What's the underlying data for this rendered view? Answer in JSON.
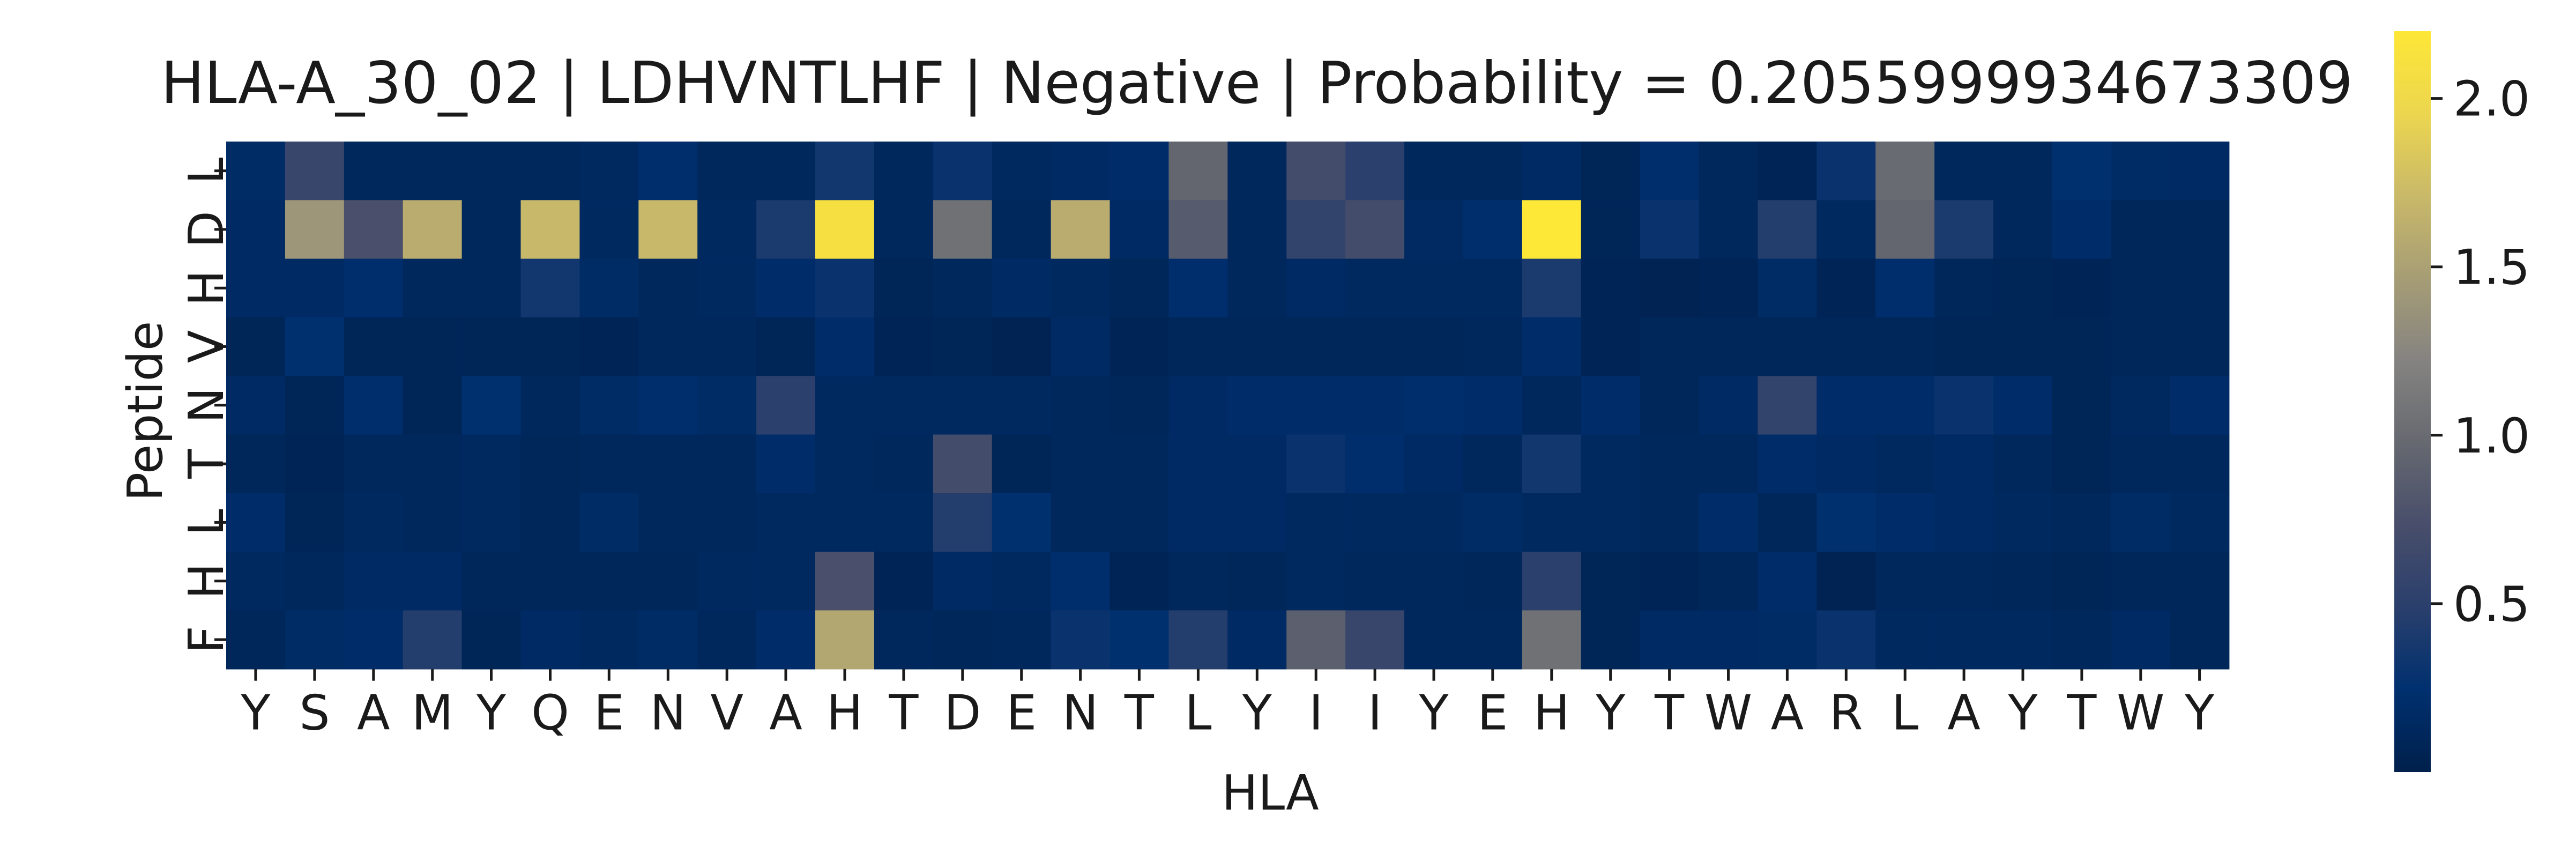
{
  "chart_data": {
    "type": "heatmap",
    "title": "HLA-A_30_02 | LDHVNTLHF | Negative | Probability = 0.2055999934673309",
    "xlabel": "HLA",
    "ylabel": "Peptide",
    "x_categories": [
      "Y",
      "S",
      "A",
      "M",
      "Y",
      "Q",
      "E",
      "N",
      "V",
      "A",
      "H",
      "T",
      "D",
      "E",
      "N",
      "T",
      "L",
      "Y",
      "I",
      "I",
      "Y",
      "E",
      "H",
      "Y",
      "T",
      "W",
      "A",
      "R",
      "L",
      "A",
      "Y",
      "T",
      "W",
      "Y"
    ],
    "y_categories": [
      "L",
      "D",
      "H",
      "V",
      "N",
      "T",
      "L",
      "H",
      "F"
    ],
    "colormap": "cividis",
    "colors": [
      "#00204c",
      "#00306f",
      "#2a3f6c",
      "#484e6b",
      "#666970",
      "#858381",
      "#a69d75",
      "#c9b969",
      "#ecd64f",
      "#fde737"
    ],
    "vmin": 0.0,
    "vmax": 2.2,
    "colorbar_ticks": [
      0.5,
      1.0,
      1.5,
      2.0
    ],
    "colorbar_tick_labels": [
      "0.5",
      "1.0",
      "1.5",
      "2.0"
    ],
    "values": [
      [
        0.18,
        0.6,
        0.12,
        0.12,
        0.12,
        0.12,
        0.14,
        0.22,
        0.12,
        0.12,
        0.35,
        0.12,
        0.3,
        0.14,
        0.16,
        0.2,
        0.95,
        0.12,
        0.7,
        0.5,
        0.12,
        0.12,
        0.16,
        0.08,
        0.22,
        0.12,
        0.06,
        0.3,
        1.0,
        0.12,
        0.12,
        0.25,
        0.18,
        0.16
      ],
      [
        0.16,
        1.4,
        0.75,
        1.6,
        0.12,
        1.7,
        0.14,
        1.7,
        0.14,
        0.4,
        2.1,
        0.12,
        1.05,
        0.12,
        1.6,
        0.16,
        0.85,
        0.12,
        0.55,
        0.7,
        0.15,
        0.22,
        2.22,
        0.08,
        0.3,
        0.12,
        0.45,
        0.14,
        0.95,
        0.4,
        0.12,
        0.2,
        0.1,
        0.1
      ],
      [
        0.16,
        0.16,
        0.22,
        0.12,
        0.12,
        0.35,
        0.18,
        0.12,
        0.14,
        0.2,
        0.3,
        0.08,
        0.12,
        0.16,
        0.14,
        0.1,
        0.22,
        0.12,
        0.16,
        0.14,
        0.14,
        0.14,
        0.4,
        0.06,
        0.05,
        0.06,
        0.18,
        0.06,
        0.22,
        0.1,
        0.08,
        0.06,
        0.1,
        0.1
      ],
      [
        0.08,
        0.25,
        0.08,
        0.08,
        0.08,
        0.08,
        0.06,
        0.12,
        0.12,
        0.08,
        0.2,
        0.06,
        0.08,
        0.05,
        0.16,
        0.06,
        0.1,
        0.1,
        0.1,
        0.1,
        0.1,
        0.12,
        0.2,
        0.06,
        0.1,
        0.1,
        0.1,
        0.1,
        0.1,
        0.08,
        0.08,
        0.08,
        0.1,
        0.1
      ],
      [
        0.16,
        0.08,
        0.22,
        0.08,
        0.25,
        0.12,
        0.18,
        0.22,
        0.18,
        0.5,
        0.14,
        0.14,
        0.14,
        0.14,
        0.12,
        0.1,
        0.16,
        0.2,
        0.2,
        0.2,
        0.22,
        0.2,
        0.12,
        0.2,
        0.1,
        0.16,
        0.55,
        0.2,
        0.2,
        0.3,
        0.2,
        0.08,
        0.14,
        0.2
      ],
      [
        0.1,
        0.06,
        0.12,
        0.12,
        0.14,
        0.1,
        0.12,
        0.12,
        0.12,
        0.2,
        0.14,
        0.12,
        0.7,
        0.08,
        0.12,
        0.12,
        0.16,
        0.16,
        0.3,
        0.22,
        0.16,
        0.12,
        0.35,
        0.14,
        0.12,
        0.12,
        0.2,
        0.16,
        0.14,
        0.16,
        0.12,
        0.08,
        0.12,
        0.12
      ],
      [
        0.2,
        0.08,
        0.14,
        0.12,
        0.14,
        0.1,
        0.18,
        0.12,
        0.12,
        0.14,
        0.14,
        0.14,
        0.45,
        0.25,
        0.12,
        0.12,
        0.16,
        0.16,
        0.14,
        0.14,
        0.14,
        0.18,
        0.14,
        0.14,
        0.12,
        0.2,
        0.1,
        0.25,
        0.2,
        0.16,
        0.14,
        0.12,
        0.18,
        0.14
      ],
      [
        0.14,
        0.12,
        0.16,
        0.16,
        0.1,
        0.1,
        0.1,
        0.1,
        0.14,
        0.14,
        0.75,
        0.06,
        0.16,
        0.14,
        0.22,
        0.06,
        0.12,
        0.1,
        0.14,
        0.12,
        0.12,
        0.1,
        0.5,
        0.08,
        0.06,
        0.1,
        0.2,
        0.05,
        0.12,
        0.12,
        0.1,
        0.08,
        0.1,
        0.1
      ],
      [
        0.1,
        0.18,
        0.2,
        0.45,
        0.08,
        0.16,
        0.14,
        0.18,
        0.12,
        0.2,
        1.55,
        0.12,
        0.1,
        0.12,
        0.3,
        0.25,
        0.45,
        0.16,
        0.9,
        0.6,
        0.12,
        0.12,
        1.05,
        0.08,
        0.16,
        0.16,
        0.18,
        0.3,
        0.14,
        0.14,
        0.14,
        0.12,
        0.16,
        0.1
      ]
    ]
  }
}
